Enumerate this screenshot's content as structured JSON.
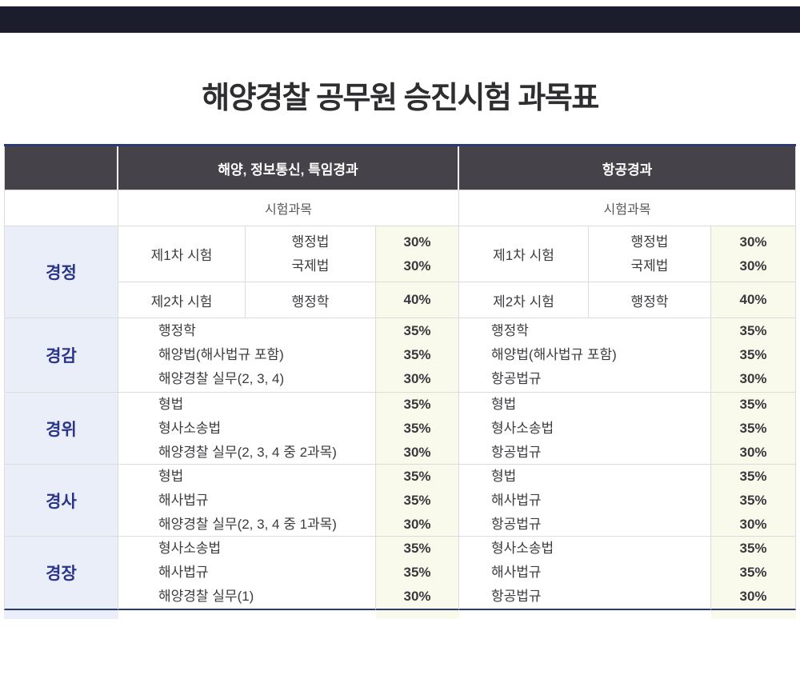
{
  "page": {
    "title": "해양경찰 공무원 승진시험 과목표"
  },
  "colors": {
    "topbar_bg": "#1b1d2c",
    "header_bg": "#454349",
    "header_text": "#ffffff",
    "rank_bg": "#e9eef8",
    "rank_text": "#2b3588",
    "weight_bg": "#fafaec",
    "body_text": "#3c3b40",
    "accent_border": "#2c3a72",
    "grid_line": "#dcdcdc"
  },
  "table": {
    "groups": [
      {
        "header": "해양, 정보통신, 특임경과",
        "subheader": "시험과목"
      },
      {
        "header": "항공경과",
        "subheader": "시험과목"
      }
    ],
    "rows": [
      {
        "rank": "경정",
        "left": {
          "exam1": {
            "label": "제1차 시험",
            "subjects": [
              "행정법",
              "국제법"
            ],
            "weights": [
              "30%",
              "30%"
            ]
          },
          "exam2": {
            "label": "제2차 시험",
            "subjects": [
              "행정학"
            ],
            "weights": [
              "40%"
            ]
          }
        },
        "right": {
          "exam1": {
            "label": "제1차 시험",
            "subjects": [
              "행정법",
              "국제법"
            ],
            "weights": [
              "30%",
              "30%"
            ]
          },
          "exam2": {
            "label": "제2차 시험",
            "subjects": [
              "행정학"
            ],
            "weights": [
              "40%"
            ]
          }
        }
      },
      {
        "rank": "경감",
        "left": {
          "subjects": [
            "행정학",
            "해양법(해사법규 포함)",
            "해양경찰 실무(2, 3, 4)"
          ],
          "weights": [
            "35%",
            "35%",
            "30%"
          ]
        },
        "right": {
          "subjects": [
            "행정학",
            "해양법(해사법규 포함)",
            "항공법규"
          ],
          "weights": [
            "35%",
            "35%",
            "30%"
          ]
        }
      },
      {
        "rank": "경위",
        "left": {
          "subjects": [
            "형법",
            "형사소송법",
            "해양경찰 실무(2, 3, 4 중 2과목)"
          ],
          "weights": [
            "35%",
            "35%",
            "30%"
          ]
        },
        "right": {
          "subjects": [
            "형법",
            "형사소송법",
            "항공법규"
          ],
          "weights": [
            "35%",
            "35%",
            "30%"
          ]
        }
      },
      {
        "rank": "경사",
        "left": {
          "subjects": [
            "형법",
            "해사법규",
            "해양경찰 실무(2, 3, 4 중 1과목)"
          ],
          "weights": [
            "35%",
            "35%",
            "30%"
          ]
        },
        "right": {
          "subjects": [
            "형법",
            "해사법규",
            "항공법규"
          ],
          "weights": [
            "35%",
            "35%",
            "30%"
          ]
        }
      },
      {
        "rank": "경장",
        "left": {
          "subjects": [
            "형사소송법",
            "해사법규",
            "해양경찰 실무(1)"
          ],
          "weights": [
            "35%",
            "35%",
            "30%"
          ]
        },
        "right": {
          "subjects": [
            "형사소송법",
            "해사법규",
            "항공법규"
          ],
          "weights": [
            "35%",
            "35%",
            "30%"
          ]
        }
      }
    ]
  }
}
